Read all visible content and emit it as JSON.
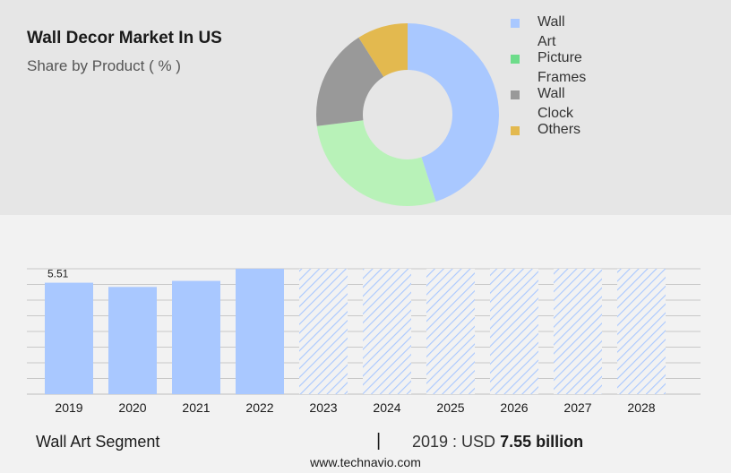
{
  "header": {
    "title": "Wall Decor Market In US",
    "subtitle": "Share by Product ( % )"
  },
  "colors": {
    "wall_art": "#a9c8ff",
    "picture_frames": "#b8f2b8",
    "wall_clock": "#999999",
    "others": "#e3b94f",
    "legend_picture_frames": "#6ddc8a",
    "forecast_hatch": "#a9c8ff",
    "grid": "#c8c8c8"
  },
  "chart_data": [
    {
      "type": "pie",
      "donut": true,
      "legend_position": "right",
      "labels": [
        "Wall Art",
        "Picture Frames",
        "Wall Clock",
        "Others"
      ],
      "values": [
        45,
        28,
        18,
        9
      ]
    },
    {
      "type": "bar",
      "categories": [
        "2019",
        "2020",
        "2021",
        "2022",
        "2023",
        "2024",
        "2025",
        "2026",
        "2027",
        "2028"
      ],
      "values": [
        5.51,
        5.3,
        5.6,
        6.2,
        6.2,
        6.2,
        6.2,
        6.2,
        6.2,
        6.2
      ],
      "forecast_from": "2023",
      "data_labels": {
        "2019": "5.51"
      },
      "ylim": [
        0,
        6.2
      ],
      "grid": true
    }
  ],
  "footer": {
    "segment": "Wall Art Segment",
    "separator": "|",
    "year_label": "2019 : USD",
    "value": "7.55 billion",
    "source": "www.technavio.com"
  }
}
